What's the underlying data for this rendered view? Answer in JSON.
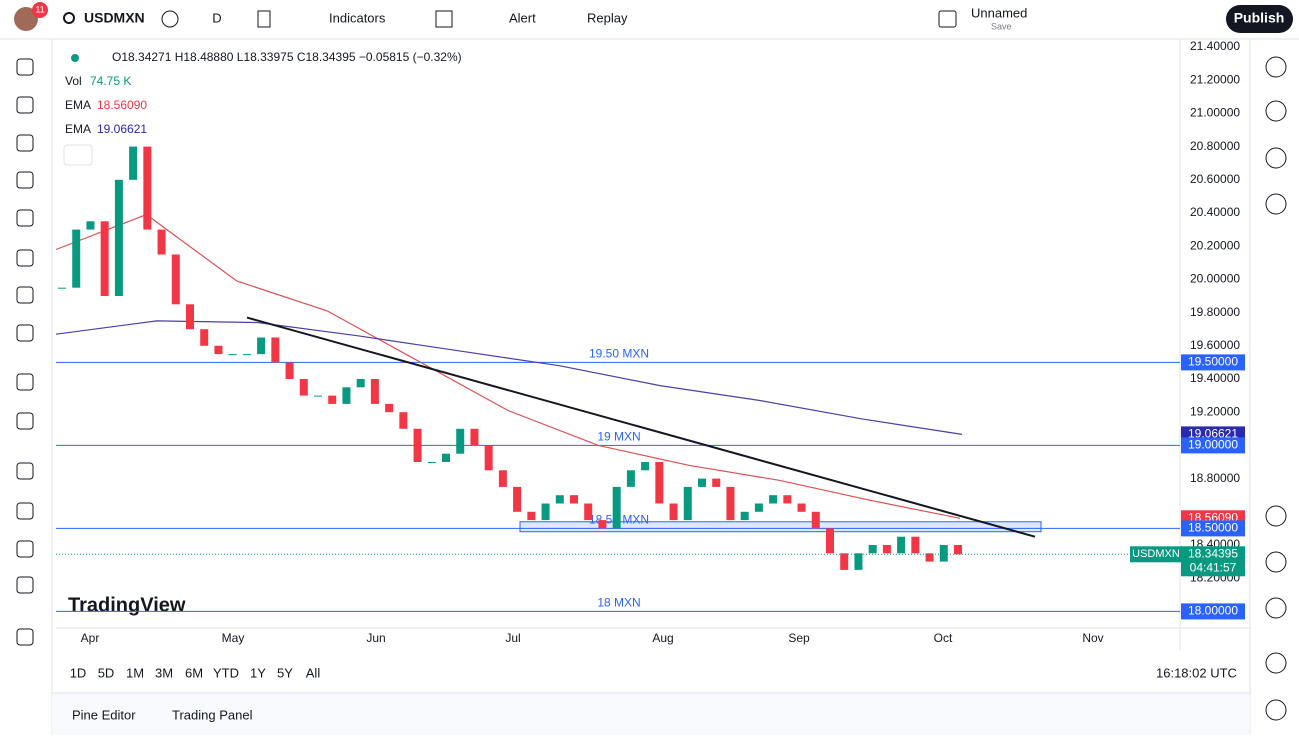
{
  "toolbar": {
    "avatar_badge": "11",
    "symbol": "USDMXN",
    "interval": "D",
    "indicators": "Indicators",
    "alert": "Alert",
    "replay": "Replay",
    "layout_name": "Unnamed",
    "layout_save": "Save",
    "publish": "Publish"
  },
  "legend": {
    "ohlc": "O18.34271 H18.48880 L18.33975 C18.34395 −0.05815 (−0.32%)",
    "vol_label": "Vol",
    "vol_value": "74.75 K",
    "ema_label": "EMA",
    "ema_fast": "18.56090",
    "ema_slow": "19.06621"
  },
  "chart_data": {
    "type": "candlestick",
    "symbol_tag": "USDMXN",
    "countdown": "04:41:57",
    "watermark": "TradingView",
    "months": [
      "Apr",
      "May",
      "Jun",
      "Jul",
      "Aug",
      "Sep",
      "Oct",
      "Nov"
    ],
    "closes": [
      19.95,
      20.3,
      20.35,
      19.9,
      20.6,
      20.8,
      20.3,
      20.15,
      19.85,
      19.7,
      19.6,
      19.55,
      19.55,
      19.55,
      19.65,
      19.5,
      19.4,
      19.3,
      19.3,
      19.25,
      19.35,
      19.4,
      19.25,
      19.2,
      19.1,
      18.9,
      18.9,
      18.95,
      19.1,
      19.0,
      18.85,
      18.75,
      18.6,
      18.55,
      18.65,
      18.7,
      18.65,
      18.55,
      18.5,
      18.75,
      18.85,
      18.9,
      18.65,
      18.55,
      18.75,
      18.8,
      18.75,
      18.55,
      18.6,
      18.65,
      18.7,
      18.65,
      18.6,
      18.5,
      18.35,
      18.25,
      18.35,
      18.4,
      18.35,
      18.45,
      18.35,
      18.3,
      18.4,
      18.34395
    ],
    "ema_fast": [
      20.18,
      20.39,
      19.99,
      19.81,
      19.51,
      19.21,
      19.0,
      18.88,
      18.79,
      18.67,
      18.5609
    ],
    "ema_slow": [
      19.67,
      19.75,
      19.74,
      19.66,
      19.57,
      19.48,
      19.36,
      19.27,
      19.16,
      19.06621
    ],
    "trendline": [
      19.77,
      18.45
    ],
    "zone": [
      18.48,
      18.54
    ],
    "levels": [
      {
        "value": 19.5,
        "label": "19.50 MXN"
      },
      {
        "value": 19,
        "label": "19 MXN"
      },
      {
        "value": 18.5,
        "label": "18.50 MXN"
      },
      {
        "value": 18,
        "label": "18 MXN"
      }
    ],
    "ylim": [
      17.9,
      21.43
    ],
    "yticks": [
      {
        "value": 21.4,
        "label": "21.40000"
      },
      {
        "value": 21.2,
        "label": "21.20000"
      },
      {
        "value": 21,
        "label": "21.00000"
      },
      {
        "value": 20.8,
        "label": "20.80000"
      },
      {
        "value": 20.6,
        "label": "20.60000"
      },
      {
        "value": 20.4,
        "label": "20.40000"
      },
      {
        "value": 20.2,
        "label": "20.20000"
      },
      {
        "value": 20,
        "label": "20.00000"
      },
      {
        "value": 19.8,
        "label": "19.80000"
      },
      {
        "value": 19.6,
        "label": "19.60000"
      },
      {
        "value": 19.4,
        "label": "19.40000"
      },
      {
        "value": 19.2,
        "label": "19.20000"
      },
      {
        "value": 18.8,
        "label": "18.80000"
      },
      {
        "value": 18.4,
        "label": "18.40000"
      },
      {
        "value": 18.2,
        "label": "18.20000"
      }
    ],
    "price_labels": [
      {
        "value": 19.5,
        "label": "19.50000",
        "color": "#2962ff"
      },
      {
        "value": 19.06621,
        "label": "19.06621",
        "color": "#2a2ab0"
      },
      {
        "value": 19,
        "label": "19.00000",
        "color": "#2962ff"
      },
      {
        "value": 18.5609,
        "label": "18.56090",
        "color": "#f23645"
      },
      {
        "value": 18.5,
        "label": "18.50000",
        "color": "#2962ff"
      },
      {
        "value": 18.34395,
        "label": "18.34395",
        "color": "#089981"
      },
      {
        "value": 18,
        "label": "18.00000",
        "color": "#2962ff"
      }
    ],
    "up_color": "#089981",
    "down_color": "#f23645",
    "ema_fast_color": "#e05050",
    "ema_slow_color": "#4b3fa8",
    "level_color": "#2962ff"
  },
  "bottom_bar": {
    "ranges": [
      "1D",
      "5D",
      "1M",
      "3M",
      "6M",
      "YTD",
      "1Y",
      "5Y",
      "All"
    ],
    "clock": "16:18:02 UTC"
  },
  "panel": {
    "tabs": [
      "Pine Editor",
      "Trading Panel"
    ]
  }
}
